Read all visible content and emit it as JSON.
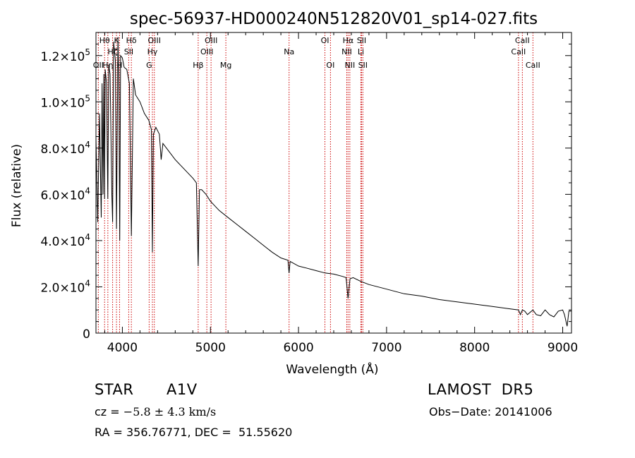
{
  "chart_data": {
    "type": "line",
    "title": "spec-56937-HD000240N512820V01_sp14-027.fits",
    "xlabel": "Wavelength (Å)",
    "ylabel": "Flux (relative)",
    "xlim": [
      3700,
      9100
    ],
    "ylim": [
      0,
      130000
    ],
    "xticks": [
      {
        "v": 4000,
        "label": "4000"
      },
      {
        "v": 5000,
        "label": "5000"
      },
      {
        "v": 6000,
        "label": "6000"
      },
      {
        "v": 7000,
        "label": "7000"
      },
      {
        "v": 8000,
        "label": "8000"
      },
      {
        "v": 9000,
        "label": "9000"
      }
    ],
    "yticks": [
      {
        "v": 0,
        "mant": "0",
        "exp": ""
      },
      {
        "v": 20000,
        "mant": "2.0×10",
        "exp": "4"
      },
      {
        "v": 40000,
        "mant": "4.0×10",
        "exp": "4"
      },
      {
        "v": 60000,
        "mant": "6.0×10",
        "exp": "4"
      },
      {
        "v": 80000,
        "mant": "8.0×10",
        "exp": "4"
      },
      {
        "v": 100000,
        "mant": "1.0×10",
        "exp": "5"
      },
      {
        "v": 120000,
        "mant": "1.2×10",
        "exp": "5"
      }
    ],
    "spectrum": {
      "x": [
        3700,
        3720,
        3740,
        3760,
        3770,
        3780,
        3790,
        3798,
        3805,
        3820,
        3835,
        3845,
        3860,
        3880,
        3889,
        3900,
        3920,
        3933,
        3950,
        3960,
        3970,
        3980,
        4000,
        4020,
        4050,
        4080,
        4102,
        4125,
        4150,
        4200,
        4250,
        4300,
        4330,
        4341,
        4352,
        4380,
        4420,
        4440,
        4460,
        4500,
        4600,
        4700,
        4800,
        4840,
        4861,
        4875,
        4900,
        4950,
        5000,
        5100,
        5200,
        5300,
        5400,
        5500,
        5600,
        5700,
        5800,
        5880,
        5893,
        5905,
        6000,
        6100,
        6200,
        6300,
        6400,
        6500,
        6540,
        6563,
        6585,
        6620,
        6700,
        6800,
        7000,
        7200,
        7400,
        7600,
        7800,
        8000,
        8200,
        8400,
        8498,
        8520,
        8542,
        8570,
        8600,
        8662,
        8700,
        8750,
        8800,
        8850,
        8900,
        8950,
        9000,
        9020,
        9050,
        9070,
        9100
      ],
      "flux": [
        85000,
        48000,
        95000,
        50000,
        108000,
        60000,
        112000,
        58000,
        114000,
        108000,
        58000,
        116000,
        112000,
        60000,
        48000,
        126000,
        118000,
        45000,
        128000,
        105000,
        40000,
        120000,
        119000,
        115000,
        114000,
        108000,
        42000,
        110000,
        103000,
        100000,
        95000,
        92000,
        88000,
        35000,
        86000,
        89000,
        86000,
        75000,
        82000,
        80000,
        75000,
        71000,
        67000,
        65000,
        29000,
        62000,
        62000,
        60000,
        57000,
        53000,
        50000,
        47000,
        44000,
        41000,
        38000,
        35000,
        32500,
        31500,
        26000,
        31000,
        29000,
        28000,
        27000,
        26000,
        25500,
        24500,
        24000,
        15000,
        23500,
        24000,
        22500,
        21000,
        19000,
        17000,
        16000,
        14500,
        13500,
        12500,
        11500,
        10500,
        10000,
        8000,
        10000,
        9500,
        8000,
        10000,
        8000,
        7500,
        10000,
        8000,
        7000,
        9500,
        10000,
        8000,
        3000,
        9500,
        9500
      ]
    },
    "lines": [
      {
        "wl": 3727,
        "label": "OII",
        "row": 3
      },
      {
        "wl": 3798,
        "label": "Hθ",
        "row": 1
      },
      {
        "wl": 3835,
        "label": "Hη",
        "row": 3
      },
      {
        "wl": 3889,
        "label": "Hζ",
        "row": 2
      },
      {
        "wl": 3933,
        "label": "K",
        "row": 1
      },
      {
        "wl": 3968,
        "label": "H",
        "row": 3
      },
      {
        "wl": 4072,
        "label": "SII",
        "row": 2
      },
      {
        "wl": 4102,
        "label": "Hδ",
        "row": 1
      },
      {
        "wl": 4304,
        "label": "G",
        "row": 3
      },
      {
        "wl": 4341,
        "label": "Hγ",
        "row": 2
      },
      {
        "wl": 4363,
        "label": "OIII",
        "row": 1
      },
      {
        "wl": 4861,
        "label": "Hβ",
        "row": 3
      },
      {
        "wl": 4959,
        "label": "OIII",
        "row": 2
      },
      {
        "wl": 5007,
        "label": "OIII",
        "row": 1
      },
      {
        "wl": 5175,
        "label": "Mg",
        "row": 3
      },
      {
        "wl": 5893,
        "label": "Na",
        "row": 2
      },
      {
        "wl": 6300,
        "label": "OI",
        "row": 1
      },
      {
        "wl": 6363,
        "label": "OI",
        "row": 3
      },
      {
        "wl": 6548,
        "label": "NII",
        "row": 2
      },
      {
        "wl": 6563,
        "label": "Hα",
        "row": 1
      },
      {
        "wl": 6583,
        "label": "NII",
        "row": 3
      },
      {
        "wl": 6708,
        "label": "Li",
        "row": 2
      },
      {
        "wl": 6716,
        "label": "SII",
        "row": 1
      },
      {
        "wl": 6731,
        "label": "SII",
        "row": 3
      },
      {
        "wl": 8498,
        "label": "CaII",
        "row": 2
      },
      {
        "wl": 8542,
        "label": "CaII",
        "row": 1
      },
      {
        "wl": 8662,
        "label": "CaII",
        "row": 3
      }
    ],
    "line_color": "#000000",
    "marker_color": "#cc0000"
  },
  "info": {
    "object_class": "STAR",
    "subclass": "A1V",
    "survey": "LAMOST  DR5",
    "cz_prefix": "cz = ",
    "cz_value": "−5.8 ± 4.3 km/s",
    "obs_date": "Obs−Date: 20141006",
    "coords": "RA = 356.76771, DEC =  51.55620"
  }
}
